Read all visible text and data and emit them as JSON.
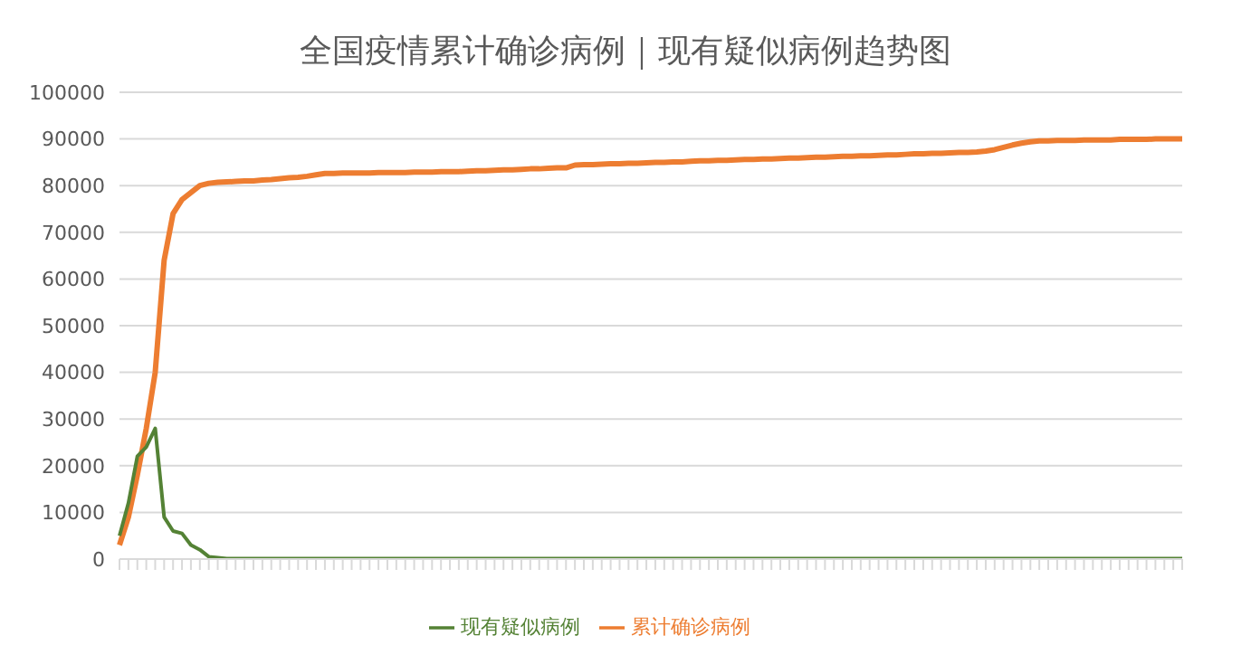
{
  "chart_data": {
    "type": "line",
    "title": "全国疫情累计确诊病例｜现有疑似病例趋势图",
    "categories": [
      null,
      null,
      null,
      null,
      null,
      null,
      null,
      null,
      null,
      null,
      null,
      null,
      null,
      null,
      null,
      null,
      null,
      null,
      null,
      null,
      null,
      null,
      null,
      null,
      null,
      null,
      null,
      null,
      null,
      null,
      null,
      null,
      null,
      null,
      null,
      null,
      null,
      null,
      null,
      null,
      null,
      null,
      null,
      null,
      null,
      null,
      null,
      null,
      null,
      null,
      null,
      null,
      null,
      null,
      null,
      null,
      null,
      null,
      null,
      null,
      null,
      null,
      null,
      null,
      null,
      null,
      null,
      null,
      null,
      null,
      null,
      null,
      null,
      null,
      null,
      null,
      null,
      null,
      null,
      null,
      null,
      null,
      null,
      null,
      null,
      null,
      null,
      null,
      null,
      null,
      null,
      null,
      null,
      null,
      null,
      null,
      null,
      null,
      null,
      null,
      null,
      null,
      null,
      null,
      null,
      null,
      null,
      null,
      null,
      null,
      null,
      null,
      null,
      null,
      null,
      null,
      null,
      null,
      null,
      null
    ],
    "series": [
      {
        "name": "累计确诊病例",
        "color": "#ed7d31",
        "values": [
          3000,
          9000,
          18000,
          28000,
          40000,
          64000,
          74000,
          77000,
          78500,
          80000,
          80500,
          80700,
          80800,
          80900,
          81000,
          81000,
          81200,
          81300,
          81500,
          81700,
          81800,
          82000,
          82300,
          82600,
          82600,
          82700,
          82700,
          82700,
          82700,
          82800,
          82800,
          82800,
          82800,
          82900,
          82900,
          82900,
          83000,
          83000,
          83000,
          83100,
          83200,
          83200,
          83300,
          83400,
          83400,
          83500,
          83600,
          83600,
          83700,
          83800,
          83800,
          84400,
          84500,
          84500,
          84600,
          84700,
          84700,
          84800,
          84800,
          84900,
          85000,
          85000,
          85100,
          85100,
          85200,
          85300,
          85300,
          85400,
          85400,
          85500,
          85600,
          85600,
          85700,
          85700,
          85800,
          85900,
          85900,
          86000,
          86100,
          86100,
          86200,
          86300,
          86300,
          86400,
          86400,
          86500,
          86600,
          86600,
          86700,
          86800,
          86800,
          86900,
          86900,
          87000,
          87100,
          87100,
          87200,
          87400,
          87700,
          88200,
          88700,
          89100,
          89400,
          89600,
          89600,
          89700,
          89700,
          89700,
          89800,
          89800,
          89800,
          89800,
          89900,
          89900,
          89900,
          89900,
          90000,
          90000,
          90000,
          90000
        ]
      },
      {
        "name": "现有疑似病例",
        "color": "#548235",
        "values": [
          5000,
          12000,
          22000,
          24000,
          28000,
          9000,
          6000,
          5500,
          3000,
          2000,
          500,
          300,
          100,
          100,
          100,
          100,
          100,
          100,
          100,
          100,
          100,
          100,
          100,
          100,
          100,
          100,
          100,
          100,
          100,
          100,
          100,
          100,
          100,
          100,
          100,
          100,
          100,
          100,
          100,
          100,
          100,
          100,
          100,
          100,
          100,
          100,
          100,
          100,
          100,
          100,
          100,
          100,
          100,
          100,
          100,
          100,
          100,
          100,
          100,
          100,
          100,
          100,
          100,
          100,
          100,
          100,
          100,
          100,
          100,
          100,
          100,
          100,
          100,
          100,
          100,
          100,
          100,
          100,
          100,
          100,
          100,
          100,
          100,
          100,
          100,
          100,
          100,
          100,
          100,
          100,
          100,
          100,
          100,
          100,
          100,
          100,
          100,
          100,
          100,
          100,
          100,
          100,
          100,
          100,
          100,
          100,
          100,
          100,
          100,
          100,
          100,
          100,
          100,
          100,
          100,
          100,
          100,
          100,
          100,
          100
        ]
      }
    ],
    "ylim": [
      0,
      100000
    ],
    "yticks": [
      0,
      10000,
      20000,
      30000,
      40000,
      50000,
      60000,
      70000,
      80000,
      90000,
      100000
    ],
    "grid": "y",
    "legend": "bottom",
    "marker": "none",
    "line_style": "solid"
  }
}
